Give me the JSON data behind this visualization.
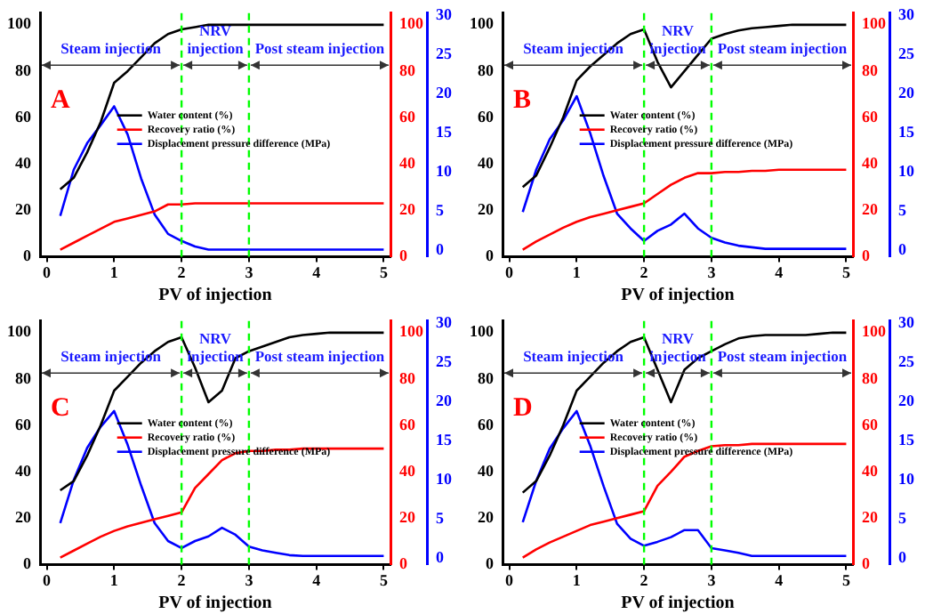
{
  "chart_data": [
    {
      "type": "line",
      "xlabel": "PV of injection",
      "x": [
        0.2,
        0.4,
        0.6,
        0.8,
        1,
        1.2,
        1.4,
        1.6,
        1.8,
        2,
        2.2,
        2.4,
        2.6,
        2.8,
        3,
        3.2,
        3.4,
        3.6,
        3.8,
        4,
        4.2,
        4.4,
        4.6,
        4.8,
        5
      ],
      "xlim": [
        -0.1,
        5.1
      ],
      "xticks": [
        0,
        1,
        2,
        3,
        4,
        5
      ],
      "ylim": [
        0,
        105
      ],
      "yticks": [
        0,
        20,
        40,
        60,
        80,
        100
      ],
      "y2lim": [
        0,
        105
      ],
      "y2ticks": [
        0,
        20,
        40,
        60,
        80,
        100
      ],
      "y3lim": [
        -0.8,
        30.3
      ],
      "y3ticks": [
        0,
        5,
        10,
        15,
        20,
        25,
        30
      ],
      "grid": false,
      "legend": "right",
      "marker": "none",
      "line_style": "solid",
      "series": [
        {
          "name": "Water content (%)",
          "color": "#000000",
          "axis": "y",
          "values": [
            29,
            34,
            45,
            58,
            75,
            80,
            86,
            92,
            96,
            98,
            99,
            100,
            100,
            100,
            100,
            100,
            100,
            100,
            100,
            100,
            100,
            100,
            100,
            100,
            100
          ]
        },
        {
          "name": "Recovery ratio (%)",
          "color": "#ff0000",
          "axis": "y2",
          "values": [
            3,
            6,
            9,
            12,
            15,
            16.5,
            18,
            19.5,
            22.5,
            22.5,
            23,
            23,
            23,
            23,
            23,
            23,
            23,
            23,
            23,
            23,
            23,
            23,
            23,
            23,
            23
          ]
        },
        {
          "name": "Displacement pressure difference (MPa)",
          "color": "#0000ff",
          "axis": "y3",
          "values": [
            4.4,
            10.3,
            13.7,
            16,
            18.4,
            14.8,
            9.2,
            4.6,
            2.1,
            1.2,
            0.5,
            0.1,
            0.1,
            0.1,
            0.1,
            0.1,
            0.1,
            0.1,
            0.1,
            0.1,
            0.1,
            0.1,
            0.1,
            0.1,
            0.1
          ]
        }
      ],
      "ref_lines": [
        {
          "axis": "x",
          "value": 2,
          "color": "#00ff00",
          "line_style": "dashed"
        },
        {
          "axis": "x",
          "value": 3,
          "color": "#00ff00",
          "line_style": "dashed"
        }
      ],
      "annotations": [
        "A",
        "Steam injection",
        "NRV injection",
        "Post steam injection"
      ]
    },
    {
      "type": "line",
      "xlabel": "PV of injection",
      "x": [
        0.2,
        0.4,
        0.6,
        0.8,
        1,
        1.2,
        1.4,
        1.6,
        1.8,
        2,
        2.2,
        2.4,
        2.6,
        2.8,
        3,
        3.2,
        3.4,
        3.6,
        3.8,
        4,
        4.2,
        4.4,
        4.6,
        4.8,
        5
      ],
      "xlim": [
        -0.1,
        5.1
      ],
      "xticks": [
        0,
        1,
        2,
        3,
        4,
        5
      ],
      "ylim": [
        0,
        105
      ],
      "yticks": [
        0,
        20,
        40,
        60,
        80,
        100
      ],
      "y2lim": [
        0,
        105
      ],
      "y2ticks": [
        0,
        20,
        40,
        60,
        80,
        100
      ],
      "y3lim": [
        -0.8,
        30.3
      ],
      "y3ticks": [
        0,
        5,
        10,
        15,
        20,
        25,
        30
      ],
      "grid": false,
      "legend": "right",
      "marker": "none",
      "line_style": "solid",
      "series": [
        {
          "name": "Water content (%)",
          "color": "#000000",
          "axis": "y",
          "values": [
            30,
            35,
            47,
            60,
            76,
            82,
            87,
            92,
            96,
            98,
            84,
            73,
            80,
            87,
            94,
            96,
            97.5,
            98.5,
            99,
            99.5,
            100,
            100,
            100,
            100,
            100
          ]
        },
        {
          "name": "Recovery ratio (%)",
          "color": "#ff0000",
          "axis": "y2",
          "values": [
            3,
            6.5,
            9.5,
            12.5,
            15,
            17,
            18.5,
            20,
            21.5,
            23,
            27,
            31,
            34,
            36,
            36,
            36.5,
            36.5,
            37,
            37,
            37.5,
            37.5,
            37.5,
            37.5,
            37.5,
            37.5
          ]
        },
        {
          "name": "Displacement pressure difference (MPa)",
          "color": "#0000ff",
          "axis": "y3",
          "values": [
            4.9,
            10.3,
            14.2,
            16.6,
            19.7,
            15,
            9.5,
            4.7,
            2.8,
            1.2,
            2.5,
            3.3,
            4.7,
            2.8,
            1.6,
            1,
            0.6,
            0.4,
            0.2,
            0.2,
            0.2,
            0.2,
            0.2,
            0.2,
            0.2
          ]
        }
      ],
      "ref_lines": [
        {
          "axis": "x",
          "value": 2,
          "color": "#00ff00",
          "line_style": "dashed"
        },
        {
          "axis": "x",
          "value": 3,
          "color": "#00ff00",
          "line_style": "dashed"
        }
      ],
      "annotations": [
        "B",
        "Steam injection",
        "NRV injection",
        "Post steam injection"
      ]
    },
    {
      "type": "line",
      "xlabel": "PV of injection",
      "x": [
        0.2,
        0.4,
        0.6,
        0.8,
        1,
        1.2,
        1.4,
        1.6,
        1.8,
        2,
        2.2,
        2.4,
        2.6,
        2.8,
        3,
        3.2,
        3.4,
        3.6,
        3.8,
        4,
        4.2,
        4.4,
        4.6,
        4.8,
        5
      ],
      "xlim": [
        -0.1,
        5.1
      ],
      "xticks": [
        0,
        1,
        2,
        3,
        4,
        5
      ],
      "ylim": [
        0,
        105
      ],
      "yticks": [
        0,
        20,
        40,
        60,
        80,
        100
      ],
      "y2lim": [
        0,
        105
      ],
      "y2ticks": [
        0,
        20,
        40,
        60,
        80,
        100
      ],
      "y3lim": [
        -0.8,
        30.3
      ],
      "y3ticks": [
        0,
        5,
        10,
        15,
        20,
        25,
        30
      ],
      "grid": false,
      "legend": "right",
      "marker": "none",
      "line_style": "solid",
      "series": [
        {
          "name": "Water content (%)",
          "color": "#000000",
          "axis": "y",
          "values": [
            32,
            36,
            47,
            60,
            75,
            81,
            87,
            92,
            96,
            98,
            85,
            70,
            75,
            89,
            92,
            94,
            96,
            98,
            99,
            99.5,
            100,
            100,
            100,
            100,
            100
          ]
        },
        {
          "name": "Recovery ratio (%)",
          "color": "#ff0000",
          "axis": "y2",
          "values": [
            3,
            6,
            9,
            12,
            14.5,
            16.5,
            18,
            19.5,
            21,
            22.5,
            33,
            39,
            45,
            48,
            49,
            49,
            49.5,
            49.5,
            50,
            50,
            50,
            50,
            50,
            50,
            50
          ]
        },
        {
          "name": "Displacement pressure difference (MPa)",
          "color": "#0000ff",
          "axis": "y3",
          "values": [
            4.5,
            10,
            14.1,
            16.8,
            18.8,
            14.5,
            9.3,
            4.5,
            2.2,
            1.3,
            2.2,
            2.8,
            3.9,
            3,
            1.5,
            1,
            0.7,
            0.4,
            0.3,
            0.3,
            0.3,
            0.3,
            0.3,
            0.3,
            0.3
          ]
        }
      ],
      "ref_lines": [
        {
          "axis": "x",
          "value": 2,
          "color": "#00ff00",
          "line_style": "dashed"
        },
        {
          "axis": "x",
          "value": 3,
          "color": "#00ff00",
          "line_style": "dashed"
        }
      ],
      "annotations": [
        "C",
        "Steam injection",
        "NRV injection",
        "Post steam injection"
      ]
    },
    {
      "type": "line",
      "xlabel": "PV of injection",
      "x": [
        0.2,
        0.4,
        0.6,
        0.8,
        1,
        1.2,
        1.4,
        1.6,
        1.8,
        2,
        2.2,
        2.4,
        2.6,
        2.8,
        3,
        3.2,
        3.4,
        3.6,
        3.8,
        4,
        4.2,
        4.4,
        4.6,
        4.8,
        5
      ],
      "xlim": [
        -0.1,
        5.1
      ],
      "xticks": [
        0,
        1,
        2,
        3,
        4,
        5
      ],
      "ylim": [
        0,
        105
      ],
      "yticks": [
        0,
        20,
        40,
        60,
        80,
        100
      ],
      "y2lim": [
        0,
        105
      ],
      "y2ticks": [
        0,
        20,
        40,
        60,
        80,
        100
      ],
      "y3lim": [
        -0.8,
        30.3
      ],
      "y3ticks": [
        0,
        5,
        10,
        15,
        20,
        25,
        30
      ],
      "grid": false,
      "legend": "right",
      "marker": "none",
      "line_style": "solid",
      "series": [
        {
          "name": "Water content (%)",
          "color": "#000000",
          "axis": "y",
          "values": [
            31,
            36,
            47,
            60,
            75,
            81,
            87,
            92,
            96,
            98,
            84,
            70,
            84,
            89,
            92,
            95,
            97.5,
            98.5,
            99,
            99,
            99,
            99,
            99.5,
            100,
            100
          ]
        },
        {
          "name": "Recovery ratio (%)",
          "color": "#ff0000",
          "axis": "y2",
          "values": [
            3,
            6.5,
            9.5,
            12,
            14.5,
            17,
            18.5,
            20,
            21.5,
            23,
            34,
            40,
            46.5,
            49,
            51,
            51.5,
            51.5,
            52,
            52,
            52,
            52,
            52,
            52,
            52,
            52
          ]
        },
        {
          "name": "Displacement pressure difference (MPa)",
          "color": "#0000ff",
          "axis": "y3",
          "values": [
            4.6,
            9.9,
            14,
            16.6,
            18.8,
            14.4,
            9.2,
            4.4,
            2.5,
            1.6,
            2.1,
            2.7,
            3.6,
            3.6,
            1.3,
            1,
            0.7,
            0.3,
            0.3,
            0.3,
            0.3,
            0.3,
            0.3,
            0.3,
            0.3
          ]
        }
      ],
      "ref_lines": [
        {
          "axis": "x",
          "value": 2,
          "color": "#00ff00",
          "line_style": "dashed"
        },
        {
          "axis": "x",
          "value": 3,
          "color": "#00ff00",
          "line_style": "dashed"
        }
      ],
      "annotations": [
        "D",
        "Steam injection",
        "NRV injection",
        "Post steam injection"
      ]
    }
  ]
}
